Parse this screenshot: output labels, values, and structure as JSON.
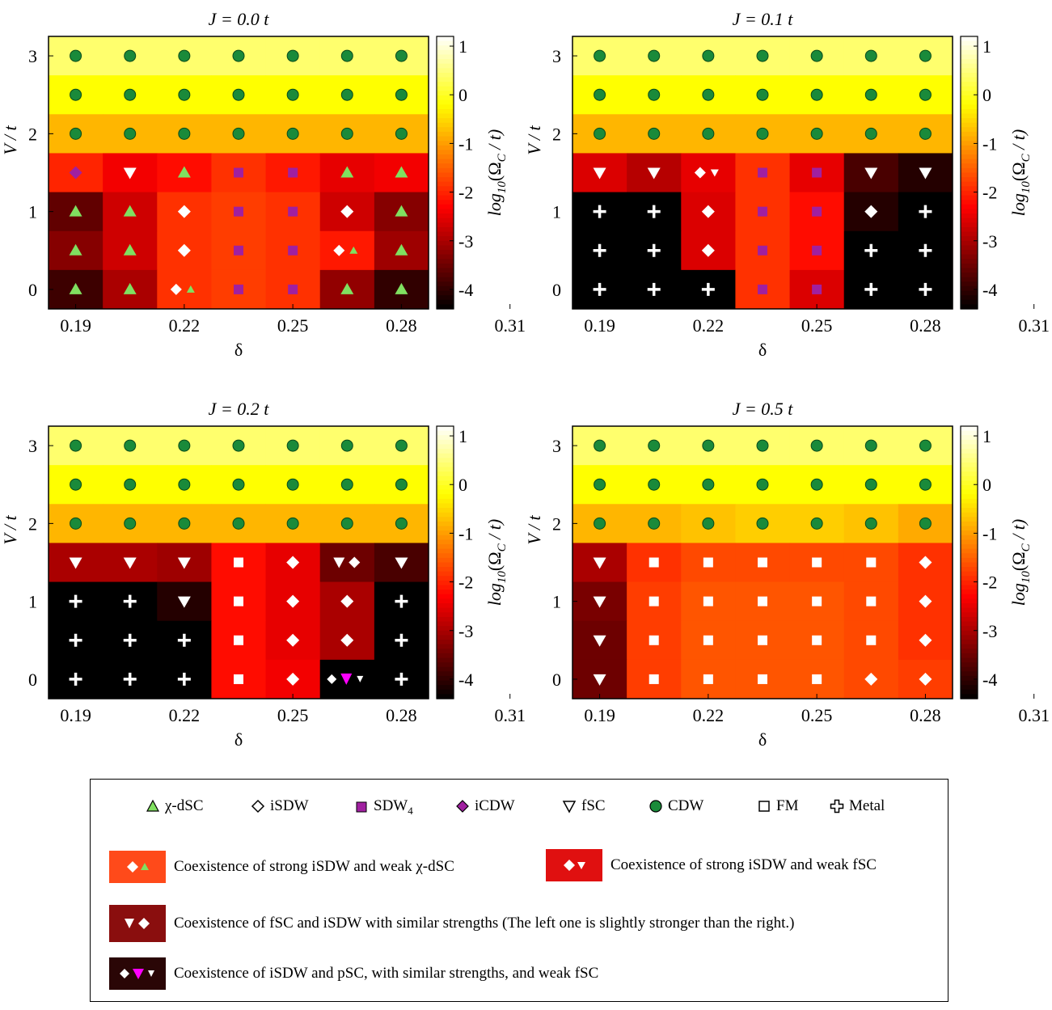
{
  "colorbar": {
    "label": "log10(ΩC / t)",
    "ticks": [
      "1",
      "0",
      "-1",
      "-2",
      "-3",
      "-4"
    ],
    "tick_values": [
      1,
      0,
      -1,
      -2,
      -3,
      -4
    ],
    "range": [
      -4.4,
      1.2
    ]
  },
  "axes": {
    "xlabel": "δ",
    "ylabel": "V / t",
    "xticks": [
      "0.19",
      "0.22",
      "0.25",
      "0.28",
      "0.31"
    ],
    "yticks": [
      "3",
      "2",
      "1",
      "0"
    ]
  },
  "legend": {
    "items": [
      {
        "symbol": "triangle-up",
        "color": "#80e060",
        "label": "χ-dSC"
      },
      {
        "symbol": "diamond-open",
        "color": "#000000",
        "label": "iSDW"
      },
      {
        "symbol": "square",
        "color": "#a020a0",
        "label": "SDW4"
      },
      {
        "symbol": "diamond",
        "color": "#a020a0",
        "label": "iCDW"
      },
      {
        "symbol": "triangle-down-open",
        "color": "#000000",
        "label": "fSC"
      },
      {
        "symbol": "circle",
        "color": "#1a8a3a",
        "label": "CDW"
      },
      {
        "symbol": "square-open",
        "color": "#000000",
        "label": "FM"
      },
      {
        "symbol": "cross-open",
        "color": "#000000",
        "label": "Metal"
      }
    ],
    "coexistence": [
      {
        "label": "Coexistence of strong iSDW and weak χ-dSC",
        "swatch": "#ff4a1a"
      },
      {
        "label": "Coexistence of strong iSDW and weak fSC",
        "swatch": "#e01010"
      },
      {
        "label": "Coexistence of fSC and iSDW with similar strengths (The left one is slightly stronger than the right.)",
        "swatch": "#8a0e0e"
      },
      {
        "label": "Coexistence of iSDW and pSC, with similar strengths, and weak fSC",
        "swatch": "#2a0606"
      }
    ]
  },
  "chart_data": [
    {
      "type": "heatmap",
      "title": "J = 0.0 t",
      "x": [
        0.19,
        0.205,
        0.22,
        0.235,
        0.25,
        0.265,
        0.28
      ],
      "y": [
        3.0,
        2.5,
        2.0,
        1.5,
        1.0,
        0.5,
        0.0
      ],
      "values": [
        [
          0.4,
          0.4,
          0.4,
          0.4,
          0.4,
          0.4,
          0.4
        ],
        [
          -0.2,
          -0.2,
          -0.2,
          -0.2,
          -0.2,
          -0.2,
          -0.2
        ],
        [
          -0.8,
          -0.8,
          -0.8,
          -0.8,
          -0.8,
          -0.8,
          -0.8
        ],
        [
          -2.0,
          -2.4,
          -2.2,
          -1.9,
          -2.1,
          -2.5,
          -2.4
        ],
        [
          -3.6,
          -2.7,
          -1.9,
          -1.8,
          -1.9,
          -2.7,
          -3.3
        ],
        [
          -3.3,
          -2.7,
          -1.9,
          -1.8,
          -1.9,
          -2.1,
          -3.1
        ],
        [
          -3.9,
          -3.0,
          -1.9,
          -1.8,
          -1.9,
          -3.2,
          -4.0
        ]
      ],
      "phases": [
        [
          "CDW",
          "CDW",
          "CDW",
          "CDW",
          "CDW",
          "CDW",
          "CDW"
        ],
        [
          "CDW",
          "CDW",
          "CDW",
          "CDW",
          "CDW",
          "CDW",
          "CDW"
        ],
        [
          "CDW",
          "CDW",
          "CDW",
          "CDW",
          "CDW",
          "CDW",
          "CDW"
        ],
        [
          "iCDW",
          "fSC",
          "χ-dSC",
          "SDW4",
          "SDW4",
          "χ-dSC",
          "χ-dSC"
        ],
        [
          "χ-dSC",
          "χ-dSC",
          "iSDW",
          "SDW4",
          "SDW4",
          "iSDW",
          "χ-dSC"
        ],
        [
          "χ-dSC",
          "χ-dSC",
          "iSDW",
          "SDW4",
          "SDW4",
          "iSDW+χ-dSC",
          "χ-dSC"
        ],
        [
          "χ-dSC",
          "χ-dSC",
          "iSDW+χ-dSC",
          "SDW4",
          "SDW4",
          "χ-dSC",
          "χ-dSC"
        ]
      ]
    },
    {
      "type": "heatmap",
      "title": "J = 0.1 t",
      "x": [
        0.19,
        0.205,
        0.22,
        0.235,
        0.25,
        0.265,
        0.28
      ],
      "y": [
        3.0,
        2.5,
        2.0,
        1.5,
        1.0,
        0.5,
        0.0
      ],
      "values": [
        [
          0.4,
          0.4,
          0.4,
          0.4,
          0.4,
          0.4,
          0.4
        ],
        [
          -0.2,
          -0.2,
          -0.2,
          -0.2,
          -0.2,
          -0.2,
          -0.2
        ],
        [
          -0.8,
          -0.8,
          -0.8,
          -0.8,
          -0.8,
          -0.8,
          -0.8
        ],
        [
          -2.6,
          -2.9,
          -2.5,
          -1.9,
          -2.5,
          -3.8,
          -4.1
        ],
        [
          -4.4,
          -4.4,
          -2.6,
          -1.9,
          -2.2,
          -4.1,
          -4.4
        ],
        [
          -4.4,
          -4.4,
          -2.6,
          -1.9,
          -2.2,
          -4.4,
          -4.4
        ],
        [
          -4.4,
          -4.4,
          -4.4,
          -1.9,
          -2.6,
          -4.4,
          -4.4
        ]
      ],
      "phases": [
        [
          "CDW",
          "CDW",
          "CDW",
          "CDW",
          "CDW",
          "CDW",
          "CDW"
        ],
        [
          "CDW",
          "CDW",
          "CDW",
          "CDW",
          "CDW",
          "CDW",
          "CDW"
        ],
        [
          "CDW",
          "CDW",
          "CDW",
          "CDW",
          "CDW",
          "CDW",
          "CDW"
        ],
        [
          "fSC",
          "fSC",
          "iSDW+fSC",
          "SDW4",
          "SDW4",
          "fSC",
          "fSC"
        ],
        [
          "Metal",
          "Metal",
          "iSDW",
          "SDW4",
          "SDW4",
          "iSDW",
          "Metal"
        ],
        [
          "Metal",
          "Metal",
          "iSDW",
          "SDW4",
          "SDW4",
          "Metal",
          "Metal"
        ],
        [
          "Metal",
          "Metal",
          "Metal",
          "SDW4",
          "SDW4",
          "Metal",
          "Metal"
        ]
      ]
    },
    {
      "type": "heatmap",
      "title": "J = 0.2 t",
      "x": [
        0.19,
        0.205,
        0.22,
        0.235,
        0.25,
        0.265,
        0.28
      ],
      "y": [
        3.0,
        2.5,
        2.0,
        1.5,
        1.0,
        0.5,
        0.0
      ],
      "values": [
        [
          0.4,
          0.4,
          0.4,
          0.4,
          0.4,
          0.4,
          0.4
        ],
        [
          -0.2,
          -0.2,
          -0.2,
          -0.2,
          -0.2,
          -0.2,
          -0.2
        ],
        [
          -0.8,
          -0.8,
          -0.8,
          -0.8,
          -0.8,
          -0.8,
          -0.8
        ],
        [
          -3.0,
          -3.0,
          -3.1,
          -2.2,
          -2.5,
          -3.5,
          -3.8
        ],
        [
          -4.4,
          -4.4,
          -4.1,
          -2.2,
          -2.5,
          -3.0,
          -4.4
        ],
        [
          -4.4,
          -4.4,
          -4.4,
          -2.2,
          -2.5,
          -3.0,
          -4.4
        ],
        [
          -4.4,
          -4.4,
          -4.4,
          -2.2,
          -2.4,
          -4.4,
          -4.4
        ]
      ],
      "phases": [
        [
          "CDW",
          "CDW",
          "CDW",
          "CDW",
          "CDW",
          "CDW",
          "CDW"
        ],
        [
          "CDW",
          "CDW",
          "CDW",
          "CDW",
          "CDW",
          "CDW",
          "CDW"
        ],
        [
          "CDW",
          "CDW",
          "CDW",
          "CDW",
          "CDW",
          "CDW",
          "CDW"
        ],
        [
          "fSC",
          "fSC",
          "fSC",
          "FM",
          "iSDW",
          "fSC+iSDW",
          "fSC"
        ],
        [
          "Metal",
          "Metal",
          "fSC",
          "FM",
          "iSDW",
          "iSDW",
          "Metal"
        ],
        [
          "Metal",
          "Metal",
          "Metal",
          "FM",
          "iSDW",
          "iSDW",
          "Metal"
        ],
        [
          "Metal",
          "Metal",
          "Metal",
          "FM",
          "iSDW",
          "iSDW+pSC+fSC",
          "Metal"
        ]
      ]
    },
    {
      "type": "heatmap",
      "title": "J = 0.5 t",
      "x": [
        0.19,
        0.205,
        0.22,
        0.235,
        0.25,
        0.265,
        0.28
      ],
      "y": [
        3.0,
        2.5,
        2.0,
        1.5,
        1.0,
        0.5,
        0.0
      ],
      "values": [
        [
          0.4,
          0.4,
          0.4,
          0.4,
          0.4,
          0.4,
          0.4
        ],
        [
          -0.2,
          -0.2,
          -0.2,
          -0.2,
          -0.2,
          -0.2,
          -0.2
        ],
        [
          -0.8,
          -0.8,
          -0.7,
          -0.6,
          -0.6,
          -0.7,
          -0.9
        ],
        [
          -3.0,
          -1.9,
          -1.7,
          -1.7,
          -1.7,
          -1.7,
          -1.9
        ],
        [
          -3.4,
          -1.8,
          -1.6,
          -1.6,
          -1.6,
          -1.7,
          -1.9
        ],
        [
          -3.5,
          -1.8,
          -1.6,
          -1.6,
          -1.6,
          -1.7,
          -1.9
        ],
        [
          -3.5,
          -1.8,
          -1.6,
          -1.6,
          -1.6,
          -1.7,
          -1.8
        ]
      ],
      "phases": [
        [
          "CDW",
          "CDW",
          "CDW",
          "CDW",
          "CDW",
          "CDW",
          "CDW"
        ],
        [
          "CDW",
          "CDW",
          "CDW",
          "CDW",
          "CDW",
          "CDW",
          "CDW"
        ],
        [
          "CDW",
          "CDW",
          "CDW",
          "CDW",
          "CDW",
          "CDW",
          "CDW"
        ],
        [
          "fSC",
          "FM",
          "FM",
          "FM",
          "FM",
          "FM",
          "iSDW"
        ],
        [
          "fSC",
          "FM",
          "FM",
          "FM",
          "FM",
          "FM",
          "iSDW"
        ],
        [
          "fSC",
          "FM",
          "FM",
          "FM",
          "FM",
          "FM",
          "iSDW"
        ],
        [
          "fSC",
          "FM",
          "FM",
          "FM",
          "FM",
          "iSDW",
          "iSDW"
        ]
      ]
    }
  ]
}
